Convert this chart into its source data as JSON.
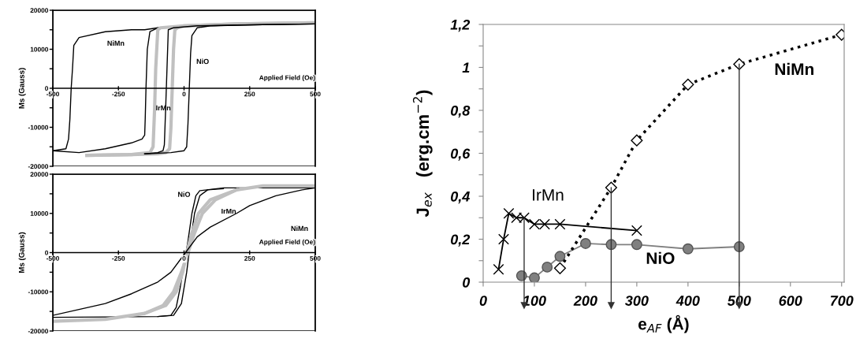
{
  "chart_data": [
    {
      "type": "line",
      "ylabel": "Ms (Gauss)",
      "xlabel": "Applied Field (Oe)",
      "xlim": [
        -500,
        500
      ],
      "ylim": [
        -20000,
        20000
      ],
      "xticks": [
        -500,
        -250,
        0,
        250,
        500
      ],
      "yticks": [
        -20000,
        {
          "value": -15000,
          "label": null
        },
        -10000,
        {
          "value": -5000,
          "label": null
        },
        0,
        {
          "value": 5000,
          "label": null
        },
        10000,
        {
          "value": 15000,
          "label": null
        },
        20000
      ],
      "series": [
        {
          "color": "#000000",
          "x": [
            -500,
            -450,
            -440,
            -435,
            -430,
            -425,
            -420,
            -400,
            -300,
            -200,
            -150,
            -100,
            0,
            100,
            300,
            500
          ],
          "values": [
            -16000,
            -15500,
            -13000,
            -8000,
            0,
            5000,
            11000,
            13000,
            14500,
            15000,
            15000,
            15500,
            16000,
            16000,
            16500,
            16500
          ]
        },
        {
          "color": "#000000",
          "x": [
            -500,
            -400,
            -300,
            -200,
            -160,
            -150,
            -148,
            -145,
            -140,
            -130,
            -100,
            0,
            100,
            300,
            500
          ],
          "values": [
            -16000,
            -16500,
            -15500,
            -14000,
            -13000,
            -12000,
            -8000,
            0,
            10000,
            14500,
            15500,
            16000,
            16300,
            16500,
            16500
          ]
        },
        {
          "color": "#c0c0c0",
          "x": [
            -370,
            -200,
            -130,
            -118,
            -112,
            -108,
            -100,
            -90,
            0,
            200,
            500
          ],
          "values": [
            -17200,
            -17000,
            -16500,
            -15000,
            -5000,
            5000,
            15000,
            15500,
            16000,
            16500,
            16800
          ]
        },
        {
          "color": "#c0c0c0",
          "x": [
            -370,
            -200,
            -100,
            -70,
            -55,
            -50,
            -45,
            -40,
            -35,
            -25,
            0,
            200,
            500
          ],
          "values": [
            -17200,
            -17000,
            -16800,
            -16500,
            -15500,
            -10000,
            0,
            10000,
            15000,
            15500,
            16000,
            16500,
            16800
          ]
        },
        {
          "color": "#000000",
          "x": [
            -150,
            -100,
            -80,
            -75,
            -70,
            -65,
            -60,
            -40,
            50,
            200,
            500
          ],
          "values": [
            -16800,
            -16500,
            -16000,
            -14500,
            -5000,
            5000,
            15000,
            15500,
            16000,
            16200,
            16500
          ]
        },
        {
          "color": "#000000",
          "x": [
            -150,
            -50,
            0,
            10,
            15,
            20,
            25,
            30,
            50,
            100,
            300,
            500
          ],
          "values": [
            -16800,
            -16500,
            -16000,
            -15000,
            -9000,
            0,
            9000,
            13500,
            15500,
            16000,
            16300,
            16500
          ]
        }
      ],
      "annotations": [
        "NiMn",
        "NiO",
        "IrMn"
      ]
    },
    {
      "type": "line",
      "ylabel": "Ms (Gauss)",
      "xlabel": "Applied Field (Oe)",
      "xlim": [
        -500,
        500
      ],
      "ylim": [
        -20000,
        20000
      ],
      "xticks": [
        -500,
        -250,
        0,
        250,
        500
      ],
      "yticks": [
        -20000,
        {
          "value": -15000,
          "label": null
        },
        -10000,
        {
          "value": -5000,
          "label": null
        },
        0,
        {
          "value": 5000,
          "label": null
        },
        10000,
        {
          "value": 15000,
          "label": null
        },
        20000
      ],
      "series": [
        {
          "color": "#000000",
          "x": [
            -500,
            -100,
            -50,
            -30,
            -15,
            0,
            15,
            30,
            45,
            60,
            150,
            500
          ],
          "values": [
            -16500,
            -16300,
            -16000,
            -14000,
            -9000,
            -3000,
            3000,
            10000,
            14500,
            15800,
            16500,
            16500
          ]
        },
        {
          "color": "#000000",
          "x": [
            -100,
            -40,
            -10,
            10,
            25,
            40,
            60,
            90,
            150
          ],
          "values": [
            -16300,
            -16000,
            -13000,
            -5000,
            3000,
            10000,
            14500,
            16000,
            16300
          ]
        },
        {
          "color": "#c0c0c0",
          "x": [
            -500,
            -300,
            -150,
            -80,
            -40,
            -10,
            15,
            40,
            70,
            120,
            200,
            300,
            500
          ],
          "values": [
            -17500,
            -17000,
            -15500,
            -13500,
            -10000,
            -5000,
            0,
            5000,
            10000,
            13500,
            16000,
            17000,
            17000
          ]
        },
        {
          "color": "#c0c0c0",
          "x": [
            -150,
            -70,
            -30,
            -5,
            10,
            30,
            55,
            100,
            200
          ],
          "values": [
            -15500,
            -13500,
            -10000,
            -5000,
            0,
            5000,
            10000,
            13500,
            16000
          ]
        },
        {
          "color": "#000000",
          "x": [
            -500,
            -400,
            -300,
            -200,
            -100,
            -50,
            0,
            50,
            100,
            200,
            250,
            350,
            450,
            500
          ],
          "values": [
            -16000,
            -14500,
            -13000,
            -10500,
            -7500,
            -5000,
            -500,
            4000,
            6500,
            10000,
            12000,
            14500,
            16000,
            16500
          ]
        }
      ],
      "annotations": [
        "NiO",
        "IrMn",
        "NiMn"
      ]
    },
    {
      "type": "line",
      "xlabel": "e$_{AF}$ (Å)",
      "ylabel": "J$_{ex}$   (erg.cm$^{−2}$)",
      "xlim": [
        0,
        705
      ],
      "ylim": [
        0,
        1.2
      ],
      "xticks": [
        0,
        100,
        200,
        300,
        400,
        500,
        600,
        700
      ],
      "yticks": [
        {
          "value": 0,
          "label": "0"
        },
        {
          "value": 0.1,
          "label": null
        },
        {
          "value": 0.2,
          "label": "0,2"
        },
        {
          "value": 0.3,
          "label": null
        },
        {
          "value": 0.4,
          "label": "0,4"
        },
        {
          "value": 0.5,
          "label": null
        },
        {
          "value": 0.6,
          "label": "0,6"
        },
        {
          "value": 0.7,
          "label": null
        },
        {
          "value": 0.8,
          "label": "0,8"
        },
        {
          "value": 0.9,
          "label": null
        },
        {
          "value": 1,
          "label": "1"
        },
        {
          "value": 1.1,
          "label": null
        },
        {
          "value": 1.2,
          "label": "1,2"
        }
      ],
      "series": [
        {
          "color": "#000000",
          "marker": "cross",
          "x": [
            30,
            40,
            50,
            65,
            80,
            100,
            120,
            150,
            300
          ],
          "values": [
            0.06,
            0.2,
            0.32,
            0.3,
            0.3,
            0.27,
            0.27,
            0.27,
            0.24
          ]
        },
        {
          "color": "#808080",
          "marker": "circle",
          "x": [
            75,
            100,
            125,
            150,
            200,
            250,
            300,
            400,
            500
          ],
          "values": [
            0.03,
            0.02,
            0.07,
            0.12,
            0.18,
            0.175,
            0.175,
            0.155,
            0.165
          ]
        },
        {
          "color": "#000000",
          "marker": "diamond",
          "line_style": "dotted",
          "x": [
            150,
            250,
            300,
            400,
            500,
            700
          ],
          "values": [
            0.065,
            0.44,
            0.66,
            0.92,
            1.015,
            1.152
          ]
        }
      ],
      "ref_lines": [
        {
          "axis": "x",
          "value": 80
        },
        {
          "axis": "x",
          "value": 250
        },
        {
          "axis": "x",
          "value": 500
        }
      ],
      "annotations": [
        "IrMn",
        "NiO",
        "NiMn"
      ]
    }
  ]
}
